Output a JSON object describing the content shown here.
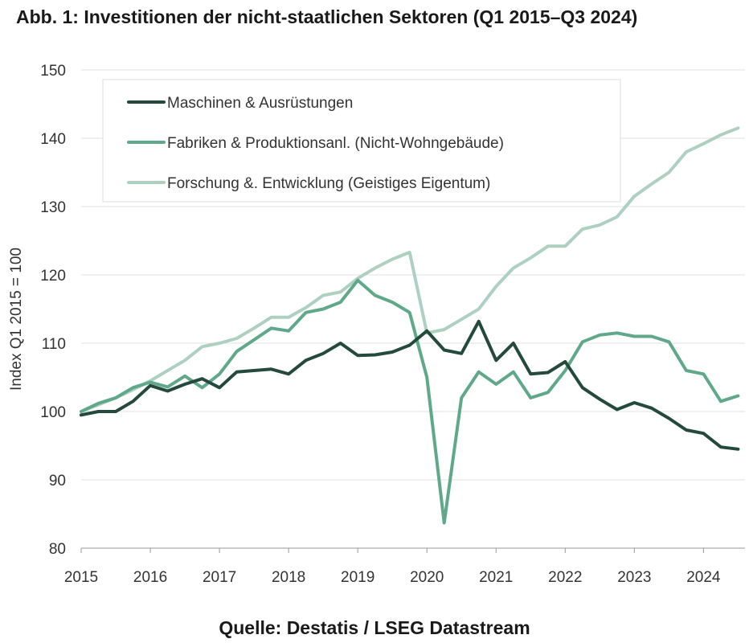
{
  "title": "Abb. 1: Investitionen der nicht-staatlichen Sektoren (Q1 2015–Q3 2024)",
  "source": "Quelle: Destatis / LSEG Datastream",
  "colors": {
    "maschinen": "#234a3c",
    "fabriken": "#5fa98a",
    "forschung": "#aed0c2",
    "grid": "#e2e2e2",
    "axis": "#999999"
  },
  "chart_data": {
    "type": "line",
    "title": "Abb. 1: Investitionen der nicht-staatlichen Sektoren (Q1 2015–Q3 2024)",
    "xlabel": "",
    "ylabel": "Index Q1 2015 = 100",
    "ylim": [
      80,
      150
    ],
    "yticks": [
      "80",
      "90",
      "100",
      "110",
      "120",
      "130",
      "140",
      "150"
    ],
    "xticks": [
      "2015",
      "2016",
      "2017",
      "2018",
      "2019",
      "2020",
      "2021",
      "2022",
      "2023",
      "2024"
    ],
    "xlim": [
      2015,
      2024.6
    ],
    "grid": true,
    "legend_position": "top-left",
    "x": [
      2015.0,
      2015.25,
      2015.5,
      2015.75,
      2016.0,
      2016.25,
      2016.5,
      2016.75,
      2017.0,
      2017.25,
      2017.5,
      2017.75,
      2018.0,
      2018.25,
      2018.5,
      2018.75,
      2019.0,
      2019.25,
      2019.5,
      2019.75,
      2020.0,
      2020.25,
      2020.5,
      2020.75,
      2021.0,
      2021.25,
      2021.5,
      2021.75,
      2022.0,
      2022.25,
      2022.5,
      2022.75,
      2023.0,
      2023.25,
      2023.5,
      2023.75,
      2024.0,
      2024.25,
      2024.5
    ],
    "series": [
      {
        "name": "Maschinen & Ausrüstungen",
        "color": "#234a3c",
        "values": [
          99.5,
          100.0,
          100.0,
          101.5,
          103.8,
          103.0,
          104.0,
          104.8,
          103.5,
          105.8,
          106.0,
          106.2,
          105.5,
          107.5,
          108.5,
          110.0,
          108.2,
          108.3,
          108.7,
          109.7,
          111.8,
          109.0,
          108.5,
          113.2,
          107.5,
          110.0,
          105.5,
          105.7,
          107.3,
          103.5,
          101.8,
          100.3,
          101.3,
          100.5,
          99.0,
          97.3,
          96.8,
          94.8,
          94.5
        ]
      },
      {
        "name": "Fabriken & Produktionsanl. (Nicht-Wohngebäude)",
        "color": "#5fa98a",
        "values": [
          100.0,
          101.2,
          102.0,
          103.5,
          104.3,
          103.6,
          105.2,
          103.5,
          105.5,
          108.8,
          110.5,
          112.2,
          111.8,
          114.5,
          115.0,
          116.0,
          119.2,
          117.0,
          116.0,
          114.5,
          105.0,
          83.7,
          102.0,
          105.8,
          104.0,
          105.8,
          102.0,
          102.8,
          106.0,
          110.2,
          111.2,
          111.5,
          111.0,
          111.0,
          110.2,
          106.0,
          105.5,
          101.5,
          102.3
        ]
      },
      {
        "name": "Forschung &. Entwicklung (Geistiges Eigentum)",
        "color": "#aed0c2",
        "values": [
          100.0,
          101.0,
          102.0,
          103.2,
          104.5,
          106.0,
          107.5,
          109.5,
          110.0,
          110.7,
          112.2,
          113.8,
          113.8,
          115.2,
          117.0,
          117.5,
          119.5,
          121.0,
          122.3,
          123.3,
          111.5,
          112.0,
          113.5,
          115.0,
          118.3,
          121.0,
          122.5,
          124.2,
          124.2,
          126.7,
          127.3,
          128.5,
          131.5,
          133.3,
          135.0,
          138.0,
          139.2,
          140.5,
          141.5
        ]
      }
    ]
  }
}
